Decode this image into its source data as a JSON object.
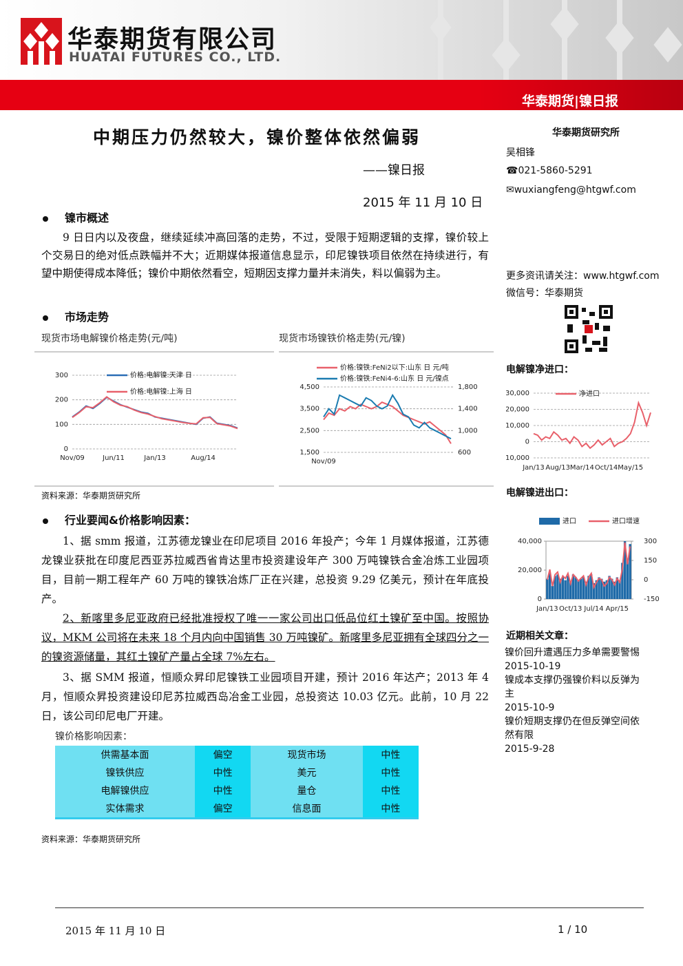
{
  "header": {
    "company_cn": "华泰期货有限公司",
    "company_en": "HUATAI FUTURES CO., LTD.",
    "banner": "华泰期货|镍日报"
  },
  "report": {
    "title": "中期压力仍然较大，镍价整体依然偏弱",
    "subtitle": "——镍日报",
    "date": "2015 年 11 月 10 日"
  },
  "sidebar": {
    "institute": "华泰期货研究所",
    "analyst": "吴相锋",
    "phone": "021-5860-5291",
    "email": "wuxiangfeng@htgwf.com",
    "more": "更多资讯请关注：www.htgwf.com",
    "wechat": "微信号：华泰期货",
    "net_import_title": "电解镍净进口：",
    "trade_title": "电解镍进出口：",
    "articles_title": "近期相关文章：",
    "articles": [
      {
        "title": "镍价回升遭遇压力多单需要警惕",
        "date": "2015-10-19"
      },
      {
        "title": "镍成本支撑仍强镍价料以反弹为主",
        "date": "2015-10-9"
      },
      {
        "title": "镍价短期支撑仍在但反弹空间依然有限",
        "date": "2015-9-28"
      }
    ]
  },
  "sections": [
    {
      "heading": "镍市概述",
      "paragraphs": [
        "9 日日内以及夜盘，继续延续冲高回落的走势，不过，受限于短期逻辑的支撑，镍价较上个交易日的绝对低点跌幅并不大；近期媒体报道信息显示，印尼镍铁项目依然在持续进行，有望中期使得成本降低；镍价中期依然看空，短期因支撑力量并未消失，料以偏弱为主。"
      ]
    },
    {
      "heading": "市场走势",
      "source": "资料来源：华泰期货研究所"
    },
    {
      "heading": "行业要闻&价格影响因素：",
      "paragraphs": [
        "1、据 smm 报道，江苏德龙镍业在印尼项目 2016 年投产；今年 1 月媒体报道，江苏德龙镍业获批在印度尼西亚苏拉威西省肯达里市投资建设年产 300 万吨镍铁合金冶炼工业园项目，目前一期工程年产 60 万吨的镍铁冶炼厂正在兴建，总投资 9.29 亿美元，预计在年底投产。",
        "2、新喀里多尼亚政府已经批准授权了唯一一家公司出口低品位红土镍矿至中国。按照协议，MKM 公司将在未来 18 个月内向中国销售 30 万吨镍矿。新喀里多尼亚拥有全球四分之一的镍资源储量，其红土镍矿产量占全球 7%左右。",
        "3、据 SMM 报道，恒顺众昇印尼镍铁工业园项目开建，预计 2016 年达产；2013 年 4 月，恒顺众昇投资建设印尼苏拉威西岛冶金工业园，总投资达 10.03 亿元。此前，10 月 22 日，该公司印尼电厂开建。"
      ],
      "table_caption": "镍价格影响因素：",
      "source": "资料来源：华泰期货研究所"
    }
  ],
  "table": {
    "rows": [
      [
        "供需基本面",
        "偏空",
        "现货市场",
        "中性"
      ],
      [
        "镍铁供应",
        "中性",
        "美元",
        "中性"
      ],
      [
        "电解镍供应",
        "中性",
        "量仓",
        "中性"
      ],
      [
        "实体需求",
        "偏空",
        "信息面",
        "中性"
      ]
    ]
  },
  "charts": [
    {
      "type": "line",
      "caption": "现货市场电解镍价格走势(元/吨)",
      "grid": true,
      "categories": [
        "Nov/09",
        null,
        null,
        null,
        null,
        null,
        "Jun/11",
        null,
        null,
        null,
        null,
        null,
        "Jan/13",
        null,
        null,
        null,
        null,
        null,
        null,
        "Aug/14",
        null,
        null,
        null,
        null,
        null
      ],
      "ylim": [
        0,
        300
      ],
      "yticks": [
        0,
        100,
        200,
        300
      ],
      "series": [
        {
          "name": "价格:电解镍:天津 日",
          "color": "#2a6db5",
          "values": [
            130,
            150,
            175,
            165,
            185,
            210,
            195,
            180,
            170,
            160,
            150,
            145,
            130,
            125,
            120,
            115,
            110,
            105,
            100,
            125,
            130,
            105,
            100,
            95,
            85
          ]
        },
        {
          "name": "价格:电解镍:上海 日",
          "color": "#e8606a",
          "values": [
            128,
            148,
            172,
            168,
            188,
            212,
            192,
            178,
            172,
            158,
            148,
            142,
            132,
            123,
            118,
            113,
            108,
            104,
            102,
            127,
            128,
            103,
            98,
            93,
            83
          ]
        }
      ]
    },
    {
      "type": "line",
      "caption": "现货市场镍铁价格走势(元/镍)",
      "grid": true,
      "categories": [
        "Nov/09",
        null,
        null,
        null,
        null,
        null,
        null,
        null,
        null,
        null,
        null,
        null,
        null,
        null,
        null,
        null,
        null,
        null,
        null,
        null,
        null,
        null,
        null,
        null,
        null
      ],
      "ylim": [
        1500,
        4500
      ],
      "yticks": [
        {
          "value": 1500,
          "label": "1,500"
        },
        {
          "value": 2500,
          "label": "2,500"
        },
        {
          "value": 3500,
          "label": "3,500"
        },
        {
          "value": 4500,
          "label": "4,500"
        }
      ],
      "y2lim": [
        600,
        1800
      ],
      "y2ticks": [
        600,
        {
          "value": 1000,
          "label": "1,000"
        },
        {
          "value": 1400,
          "label": "1,400"
        },
        {
          "value": 1800,
          "label": "1,800"
        }
      ],
      "series": [
        {
          "name": "价格:镍铁:FeNi2以下:山东 日 元/吨",
          "color": "#e8606a",
          "values": [
            3000,
            3300,
            3200,
            3500,
            3400,
            3600,
            3500,
            3700,
            3600,
            3500,
            3600,
            3800,
            3700,
            3600,
            3400,
            3200,
            3100,
            3000,
            2900,
            2800,
            2900,
            2700,
            2500,
            2300,
            1900
          ]
        },
        {
          "name": "价格:镍铁:FeNi4-6:山东 日 元/镍点",
          "color": "#1a7bb0",
          "axis": "y2",
          "values": [
            1250,
            1400,
            1300,
            1650,
            1600,
            1550,
            1500,
            1450,
            1600,
            1550,
            1450,
            1400,
            1450,
            1650,
            1500,
            1300,
            1250,
            1100,
            1050,
            1150,
            1050,
            1000,
            950,
            900,
            850
          ]
        }
      ]
    },
    {
      "type": "line",
      "grid": true,
      "categories": [
        "Jan/13",
        null,
        null,
        null,
        null,
        null,
        "Aug/13",
        null,
        null,
        null,
        null,
        null,
        "Mar/14",
        null,
        null,
        null,
        null,
        null,
        "Oct/14",
        null,
        null,
        null,
        null,
        null,
        "May/15",
        null,
        null,
        null,
        null,
        null
      ],
      "ylim": [
        -10000,
        30000
      ],
      "yticks": [
        {
          "value": -10000,
          "label": "-10,000"
        },
        0,
        {
          "value": 10000,
          "label": "10,000"
        },
        {
          "value": 20000,
          "label": "20,000"
        },
        {
          "value": 30000,
          "label": "30,000"
        }
      ],
      "series": [
        {
          "name": "净进口",
          "color": "#e8606a",
          "values": [
            5000,
            4000,
            1000,
            3000,
            2000,
            6000,
            4000,
            1000,
            2000,
            -1000,
            3000,
            1000,
            -3000,
            -1000,
            -4000,
            -2000,
            1000,
            -2000,
            0,
            2000,
            -3000,
            -1000,
            0,
            2000,
            5000,
            12000,
            24000,
            18000,
            10000,
            18000
          ]
        }
      ]
    },
    {
      "type": "combo",
      "categories": [
        "Jan/13",
        null,
        null,
        null,
        null,
        null,
        null,
        null,
        null,
        "Oct/13",
        null,
        null,
        null,
        null,
        null,
        null,
        null,
        null,
        "Jul/14",
        null,
        null,
        null,
        null,
        null,
        null,
        null,
        null,
        "Apr/15",
        null,
        null,
        null,
        null,
        null
      ],
      "ylim": [
        0,
        40000
      ],
      "yticks": [
        0,
        {
          "value": 20000,
          "label": "20,000"
        },
        {
          "value": 40000,
          "label": "40,000"
        }
      ],
      "y2lim": [
        -150,
        300
      ],
      "y2ticks": [
        -150,
        0,
        150,
        300
      ],
      "series": [
        {
          "name": "进口",
          "type": "bar",
          "color": "#1f6aa8",
          "values": [
            14000,
            18000,
            9000,
            16000,
            17000,
            14000,
            15000,
            13000,
            16000,
            12000,
            17000,
            15000,
            13000,
            14000,
            15000,
            12000,
            16000,
            17000,
            11000,
            13000,
            15000,
            14000,
            12000,
            13000,
            16000,
            14000,
            12000,
            15000,
            13000,
            25000,
            40000,
            28000,
            38000
          ]
        },
        {
          "name": "进口增速",
          "type": "line",
          "color": "#e8606a",
          "axis": "y2",
          "values": [
            0,
            80,
            -50,
            40,
            60,
            -20,
            30,
            10,
            50,
            -30,
            40,
            20,
            -10,
            10,
            30,
            -40,
            20,
            50,
            -60,
            -20,
            10,
            0,
            -50,
            -30,
            20,
            0,
            -40,
            10,
            -20,
            80,
            290,
            120,
            260
          ]
        }
      ]
    }
  ],
  "footer": {
    "date": "2015 年 11 月 10 日",
    "page": "1 / 10"
  }
}
